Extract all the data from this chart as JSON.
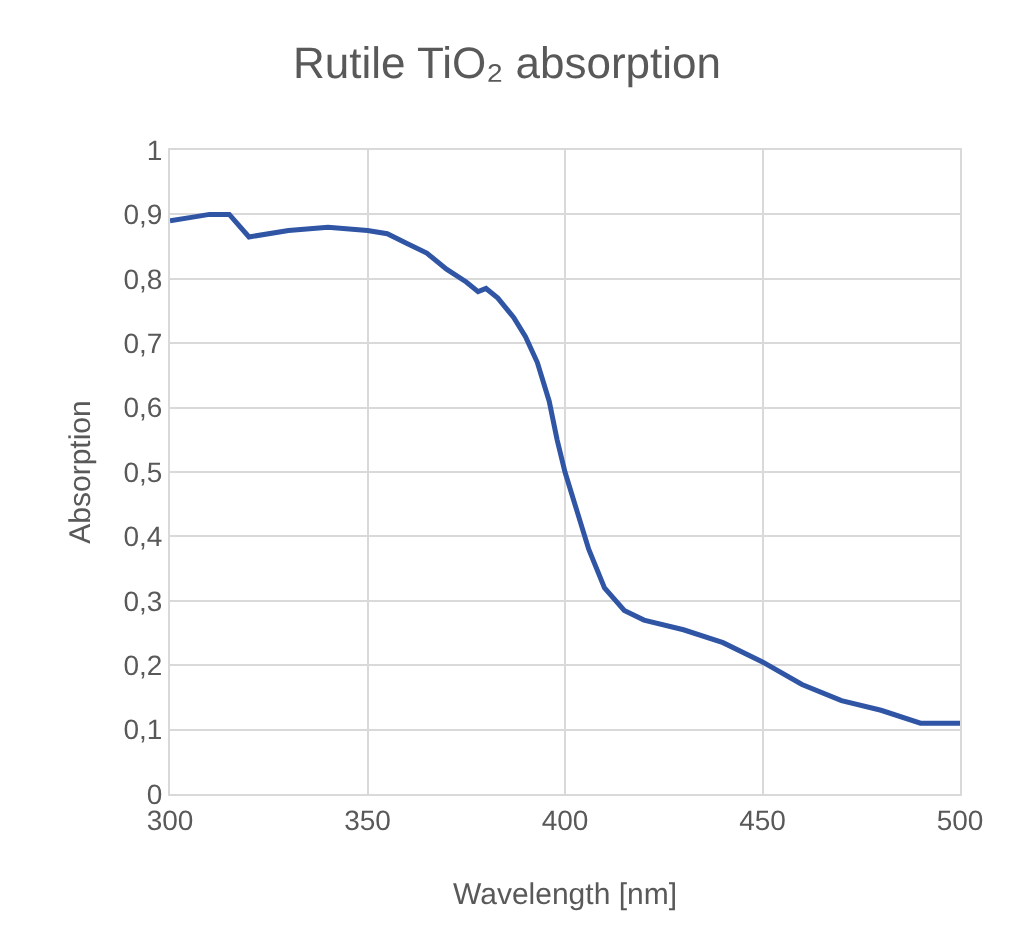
{
  "chart_data": {
    "type": "line",
    "title": "Rutile TiO₂ absorption",
    "xlabel": "Wavelength [nm]",
    "ylabel": "Absorption",
    "x": [
      300,
      305,
      310,
      315,
      320,
      330,
      340,
      350,
      355,
      360,
      365,
      370,
      375,
      378,
      380,
      383,
      387,
      390,
      393,
      396,
      398,
      400,
      403,
      406,
      410,
      415,
      420,
      430,
      440,
      450,
      460,
      470,
      480,
      490,
      500
    ],
    "series": [
      {
        "color": "#2f55a4",
        "values": [
          0.89,
          0.895,
          0.9,
          0.9,
          0.865,
          0.875,
          0.88,
          0.875,
          0.87,
          0.855,
          0.84,
          0.815,
          0.795,
          0.78,
          0.785,
          0.77,
          0.74,
          0.71,
          0.67,
          0.61,
          0.55,
          0.5,
          0.44,
          0.38,
          0.32,
          0.285,
          0.27,
          0.255,
          0.235,
          0.205,
          0.17,
          0.145,
          0.13,
          0.11,
          0.11
        ]
      }
    ],
    "xlim": [
      300,
      500
    ],
    "xticks": [
      300,
      350,
      400,
      450,
      500
    ],
    "ylim": [
      0,
      1
    ],
    "yticks": [
      0,
      {
        "value": 0.1,
        "label": "0,1"
      },
      {
        "value": 0.2,
        "label": "0,2"
      },
      {
        "value": 0.3,
        "label": "0,3"
      },
      {
        "value": 0.4,
        "label": "0,4"
      },
      {
        "value": 0.5,
        "label": "0,5"
      },
      {
        "value": 0.6,
        "label": "0,6"
      },
      {
        "value": 0.7,
        "label": "0,7"
      },
      {
        "value": 0.8,
        "label": "0,8"
      },
      {
        "value": 0.9,
        "label": "0,9"
      },
      1
    ],
    "grid": true,
    "marker": "none",
    "line_style": "solid"
  }
}
